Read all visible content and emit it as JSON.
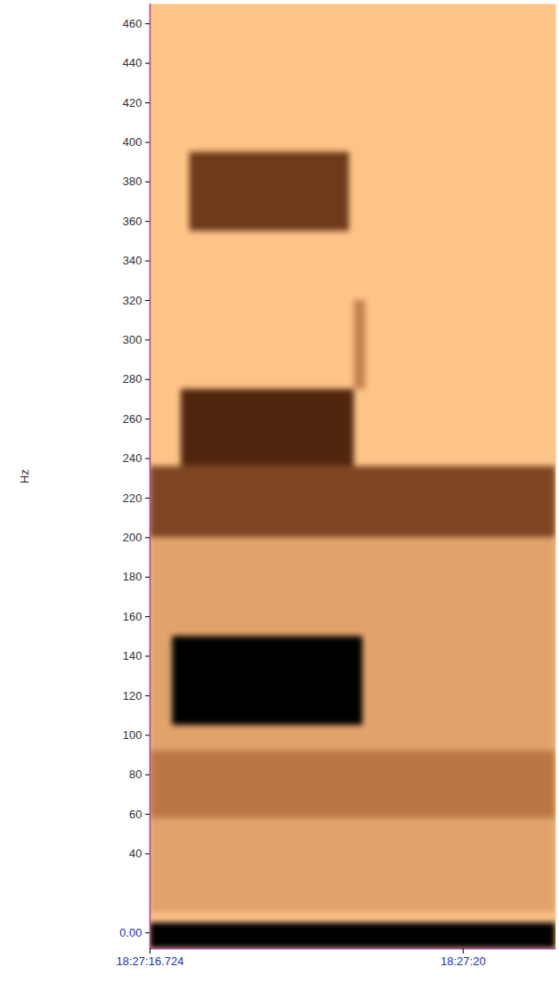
{
  "chart_data": {
    "type": "spectrogram",
    "ylabel": "Hz",
    "xlim": [
      16.724,
      20.97
    ],
    "xticks": [
      {
        "value": 16.724,
        "label": "18:27:16.724"
      },
      {
        "value": 20,
        "label": "18:27:20"
      }
    ],
    "ylim": [
      -8,
      470
    ],
    "yticks": [
      {
        "value": 0,
        "label": "0.00"
      },
      40,
      60,
      80,
      100,
      120,
      140,
      160,
      180,
      200,
      220,
      240,
      260,
      280,
      300,
      320,
      340,
      360,
      380,
      400,
      420,
      440,
      460
    ],
    "zlim": [
      0,
      1
    ],
    "cells": [
      {
        "t0": 16.724,
        "t1": 20.97,
        "f0": 10,
        "f1": 200,
        "intensity": 0.15
      },
      {
        "t0": 16.724,
        "t1": 20.97,
        "f0": 58,
        "f1": 92,
        "intensity": 0.35
      },
      {
        "t0": 16.724,
        "t1": 20.97,
        "f0": 200,
        "f1": 236,
        "intensity": 0.55
      },
      {
        "t0": 16.724,
        "t1": 20.97,
        "f0": -8,
        "f1": 5,
        "intensity": 1
      },
      {
        "t0": 16.96,
        "t1": 18.95,
        "f0": 105,
        "f1": 150,
        "intensity": 1
      },
      {
        "t0": 17.05,
        "t1": 18.86,
        "f0": 236,
        "f1": 275,
        "intensity": 0.7
      },
      {
        "t0": 17.14,
        "t1": 18.81,
        "f0": 355,
        "f1": 395,
        "intensity": 0.6
      },
      {
        "t0": 18.86,
        "t1": 18.98,
        "f0": 275,
        "f1": 320,
        "intensity": 0.3
      }
    ]
  }
}
